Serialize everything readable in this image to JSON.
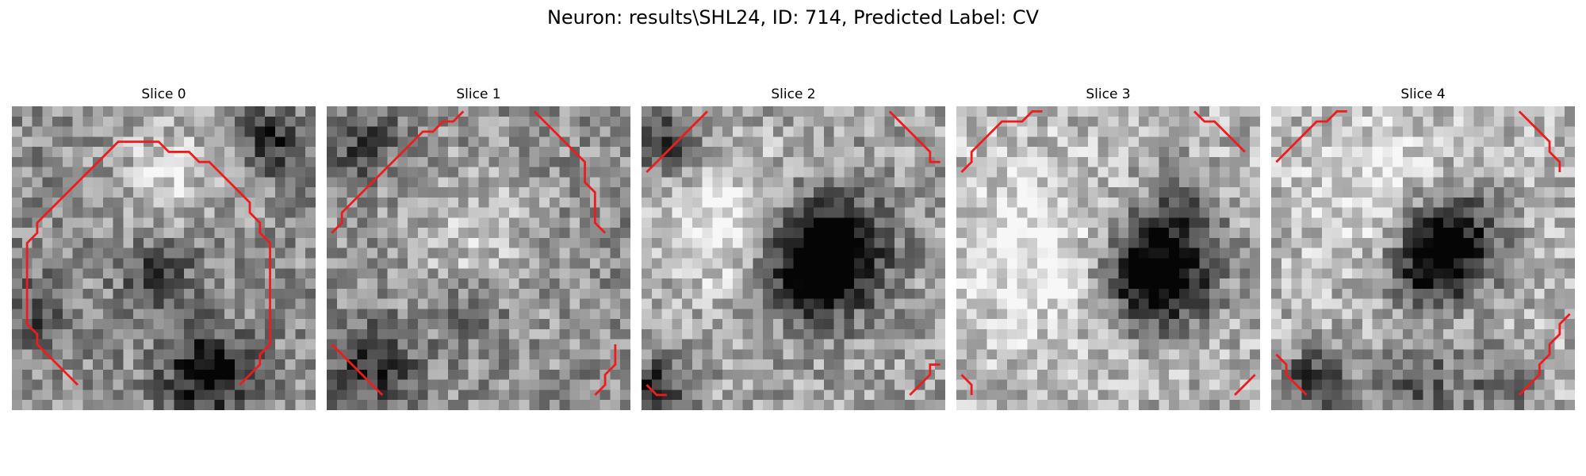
{
  "figure": {
    "title": "Neuron: results\\SHL24, ID: 714, Predicted Label: CV"
  },
  "contour_color": "#ee1c1c",
  "panels": [
    {
      "title": "Slice 0",
      "tone": "mid",
      "dark_spots": [
        [
          19,
          26,
          3.0,
          0.55
        ],
        [
          14,
          16,
          2.5,
          0.3
        ],
        [
          25,
          3,
          2.0,
          0.45
        ],
        [
          2,
          20,
          2.5,
          0.25
        ]
      ],
      "bright_spots": [
        [
          15,
          6,
          4,
          0.25
        ]
      ],
      "contours": [
        [
          [
            6,
            27
          ],
          [
            5,
            26
          ],
          [
            4,
            25
          ],
          [
            3,
            24
          ],
          [
            2,
            23
          ],
          [
            2,
            22
          ],
          [
            1,
            21
          ],
          [
            1,
            19
          ],
          [
            1,
            17
          ],
          [
            1,
            15
          ],
          [
            1,
            13
          ],
          [
            2,
            12
          ],
          [
            2,
            11
          ],
          [
            3,
            10
          ],
          [
            4,
            9
          ],
          [
            5,
            8
          ],
          [
            6,
            7
          ],
          [
            7,
            6
          ],
          [
            8,
            5
          ],
          [
            9,
            4
          ],
          [
            10,
            3
          ],
          [
            12,
            3
          ],
          [
            14,
            3
          ],
          [
            15,
            4
          ],
          [
            17,
            4
          ],
          [
            18,
            5
          ],
          [
            19,
            5
          ],
          [
            20,
            6
          ],
          [
            21,
            7
          ],
          [
            22,
            8
          ],
          [
            23,
            9
          ],
          [
            23,
            10
          ],
          [
            24,
            11
          ],
          [
            24,
            12
          ],
          [
            25,
            13
          ],
          [
            25,
            15
          ],
          [
            25,
            17
          ],
          [
            25,
            19
          ],
          [
            25,
            21
          ],
          [
            25,
            23
          ],
          [
            24,
            24
          ],
          [
            24,
            25
          ],
          [
            23,
            26
          ],
          [
            22,
            27
          ]
        ]
      ]
    },
    {
      "title": "Slice 1",
      "tone": "mid",
      "dark_spots": [
        [
          4,
          25,
          3.0,
          0.4
        ],
        [
          14,
          20,
          2.0,
          0.25
        ],
        [
          3,
          3,
          2.5,
          0.3
        ]
      ],
      "bright_spots": [
        [
          14,
          12,
          5,
          0.2
        ]
      ],
      "contours": [
        [
          [
            0,
            12
          ],
          [
            1,
            11
          ],
          [
            1,
            10
          ],
          [
            2,
            9
          ],
          [
            3,
            8
          ],
          [
            4,
            7
          ],
          [
            5,
            6
          ],
          [
            6,
            5
          ],
          [
            7,
            4
          ],
          [
            8,
            3
          ],
          [
            9,
            2
          ],
          [
            10,
            2
          ],
          [
            11,
            1
          ],
          [
            12,
            1
          ],
          [
            13,
            0
          ]
        ],
        [
          [
            20,
            0
          ],
          [
            21,
            1
          ],
          [
            22,
            2
          ],
          [
            23,
            3
          ],
          [
            24,
            4
          ],
          [
            25,
            5
          ],
          [
            25,
            7
          ],
          [
            26,
            8
          ],
          [
            26,
            10
          ],
          [
            26,
            11
          ],
          [
            27,
            12
          ]
        ],
        [
          [
            0,
            23
          ],
          [
            1,
            24
          ],
          [
            2,
            25
          ],
          [
            3,
            26
          ],
          [
            4,
            27
          ],
          [
            5,
            28
          ]
        ],
        [
          [
            26,
            28
          ],
          [
            27,
            27
          ],
          [
            27,
            26
          ],
          [
            28,
            25
          ],
          [
            28,
            24
          ],
          [
            28,
            23
          ]
        ]
      ]
    },
    {
      "title": "Slice 2",
      "tone": "mid-light",
      "dark_spots": [
        [
          18,
          14,
          4.0,
          0.75
        ],
        [
          16,
          16,
          3.0,
          0.35
        ],
        [
          2,
          3,
          2.5,
          0.4
        ],
        [
          1,
          27,
          2.0,
          0.5
        ]
      ],
      "bright_spots": [
        [
          8,
          11,
          5,
          0.3
        ]
      ],
      "contours": [
        [
          [
            0,
            6
          ],
          [
            1,
            5
          ],
          [
            2,
            4
          ],
          [
            3,
            3
          ],
          [
            4,
            2
          ],
          [
            5,
            1
          ],
          [
            6,
            0
          ]
        ],
        [
          [
            24,
            0
          ],
          [
            25,
            1
          ],
          [
            26,
            2
          ],
          [
            27,
            3
          ],
          [
            28,
            4
          ],
          [
            28,
            5
          ],
          [
            29,
            5
          ]
        ],
        [
          [
            0,
            27
          ],
          [
            1,
            28
          ],
          [
            2,
            28
          ]
        ],
        [
          [
            26,
            28
          ],
          [
            27,
            27
          ],
          [
            28,
            26
          ],
          [
            28,
            25
          ],
          [
            29,
            25
          ]
        ]
      ]
    },
    {
      "title": "Slice 3",
      "tone": "light",
      "dark_spots": [
        [
          20,
          15,
          4.0,
          0.7
        ],
        [
          18,
          17,
          3.0,
          0.3
        ],
        [
          22,
          8,
          2.0,
          0.2
        ]
      ],
      "bright_spots": [
        [
          7,
          14,
          6,
          0.25
        ]
      ],
      "contours": [
        [
          [
            0,
            6
          ],
          [
            1,
            5
          ],
          [
            1,
            4
          ],
          [
            2,
            3
          ],
          [
            3,
            2
          ],
          [
            4,
            1
          ],
          [
            6,
            1
          ],
          [
            7,
            0
          ],
          [
            8,
            0
          ]
        ],
        [
          [
            23,
            0
          ],
          [
            24,
            1
          ],
          [
            25,
            1
          ],
          [
            26,
            2
          ],
          [
            27,
            3
          ],
          [
            28,
            4
          ]
        ],
        [
          [
            0,
            26
          ],
          [
            1,
            27
          ],
          [
            1,
            28
          ]
        ],
        [
          [
            27,
            28
          ],
          [
            28,
            27
          ],
          [
            29,
            26
          ]
        ]
      ]
    },
    {
      "title": "Slice 4",
      "tone": "light",
      "dark_spots": [
        [
          17,
          13,
          3.5,
          0.75
        ],
        [
          15,
          16,
          2.5,
          0.3
        ],
        [
          4,
          27,
          2.5,
          0.5
        ],
        [
          14,
          27,
          3.0,
          0.35
        ],
        [
          22,
          27,
          2.5,
          0.3
        ]
      ],
      "bright_spots": [
        [
          10,
          8,
          5,
          0.2
        ]
      ],
      "contours": [
        [
          [
            0,
            5
          ],
          [
            1,
            4
          ],
          [
            2,
            3
          ],
          [
            3,
            2
          ],
          [
            4,
            1
          ],
          [
            5,
            1
          ],
          [
            6,
            0
          ],
          [
            7,
            0
          ]
        ],
        [
          [
            24,
            0
          ],
          [
            25,
            1
          ],
          [
            26,
            2
          ],
          [
            27,
            3
          ],
          [
            27,
            4
          ],
          [
            28,
            5
          ],
          [
            28,
            6
          ]
        ],
        [
          [
            0,
            24
          ],
          [
            1,
            25
          ],
          [
            1,
            26
          ],
          [
            2,
            27
          ],
          [
            3,
            28
          ]
        ],
        [
          [
            24,
            28
          ],
          [
            25,
            27
          ],
          [
            26,
            26
          ],
          [
            26,
            25
          ],
          [
            27,
            24
          ],
          [
            27,
            23
          ],
          [
            28,
            22
          ],
          [
            28,
            21
          ],
          [
            29,
            20
          ]
        ]
      ]
    }
  ]
}
